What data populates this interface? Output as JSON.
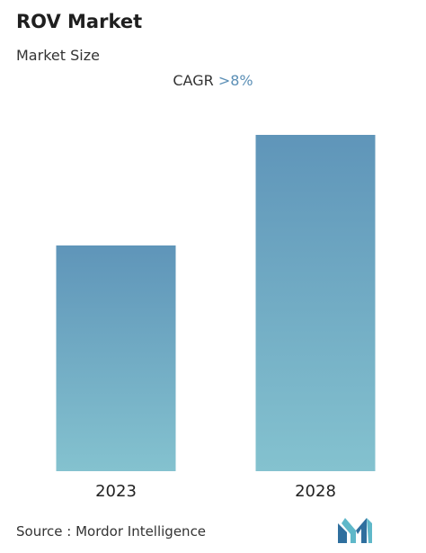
{
  "header": {
    "title": "ROV Market",
    "subtitle": "Market Size",
    "cagr_label": "CAGR",
    "cagr_value": ">8%"
  },
  "chart_data": {
    "type": "bar",
    "categories": [
      "2023",
      "2028"
    ],
    "values": [
      1.0,
      1.49
    ],
    "title": "ROV Market",
    "subtitle": "Market Size",
    "xlabel": "",
    "ylabel": "",
    "grid": false,
    "legend": "none",
    "annotation": "CAGR >8%"
  },
  "colors": {
    "bar_top": "#5f95b9",
    "bar_bottom": "#84c2cf",
    "accent": "#5b8fb6"
  },
  "footer": {
    "source": "Source :  Mordor Intelligence"
  },
  "logo": {
    "icon": "mordor-intelligence-logo-icon"
  }
}
